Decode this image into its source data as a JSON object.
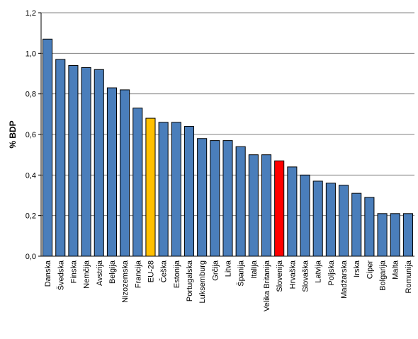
{
  "chart_data": {
    "type": "bar",
    "ylabel": "% BDP",
    "xlabel": "",
    "ylim": [
      0,
      1.2
    ],
    "yticks": [
      "0,0",
      "0,2",
      "0,4",
      "0,6",
      "0,8",
      "1,0",
      "1,2"
    ],
    "grid": true,
    "categories": [
      "Danska",
      "Švedska",
      "Finska",
      "Nemčija",
      "Avstrija",
      "Belgija",
      "Nizozemska",
      "Francija",
      "EU-28",
      "Češka",
      "Estonija",
      "Portugalska",
      "Luksemburg",
      "Grčija",
      "Litva",
      "Španija",
      "Italija",
      "Velika Britanija",
      "Slovenija",
      "Hrvaška",
      "Slovaška",
      "Latvija",
      "Poljska",
      "Madžarska",
      "Irska",
      "Ciper",
      "Bolgarija",
      "Malta",
      "Romunija"
    ],
    "values": [
      1.07,
      0.97,
      0.94,
      0.93,
      0.92,
      0.83,
      0.82,
      0.73,
      0.68,
      0.66,
      0.66,
      0.64,
      0.58,
      0.57,
      0.57,
      0.54,
      0.5,
      0.5,
      0.47,
      0.44,
      0.4,
      0.37,
      0.36,
      0.35,
      0.31,
      0.29,
      0.21,
      0.21,
      0.21
    ],
    "colors": {
      "default": "#4a7ebb",
      "EU-28": "#ffc000",
      "Slovenija": "#ff0000",
      "bar_stroke": "#000000",
      "grid": "#808080"
    }
  }
}
